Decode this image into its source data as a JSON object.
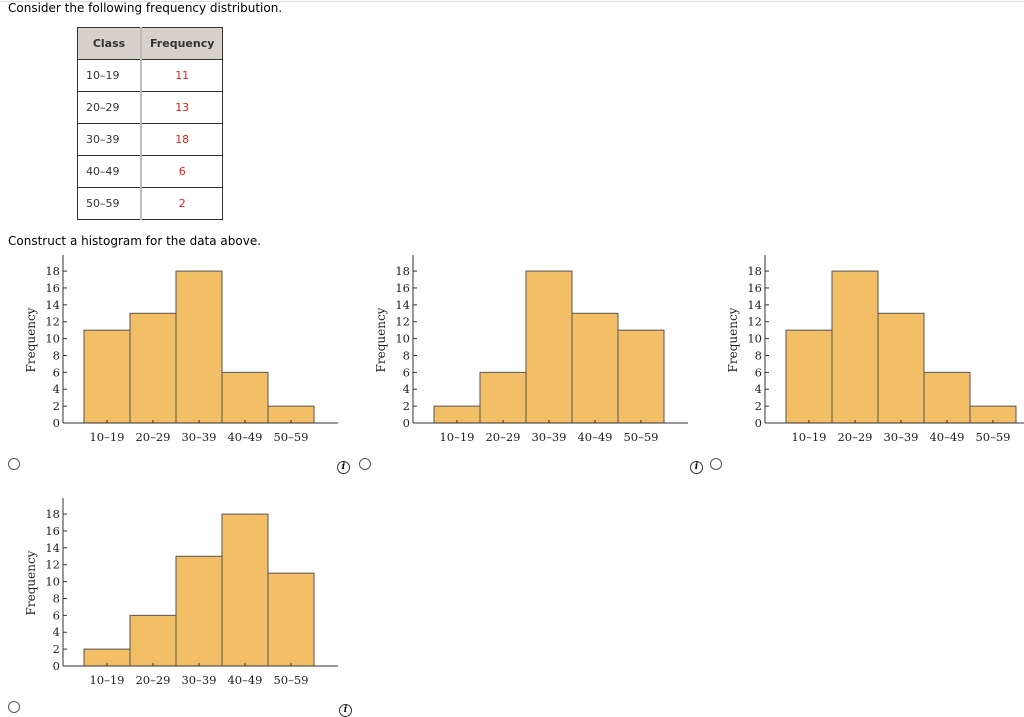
{
  "question": "Consider the following frequency distribution.",
  "instruction": "Construct a histogram for the data above.",
  "table": {
    "headers": [
      "Class",
      "Frequency"
    ],
    "rows": [
      [
        "10–19",
        "11"
      ],
      [
        "20–29",
        "13"
      ],
      [
        "30–39",
        "18"
      ],
      [
        "40–49",
        "6"
      ],
      [
        "50–59",
        "2"
      ]
    ]
  },
  "info_label": "i",
  "chart_data": [
    {
      "type": "bar",
      "option": "A",
      "categories": [
        "10–19",
        "20–29",
        "30–39",
        "40–49",
        "50–59"
      ],
      "values": [
        11,
        13,
        18,
        6,
        2
      ],
      "ylabel": "Frequency",
      "ylim": [
        0,
        19
      ],
      "yticks": [
        0,
        2,
        4,
        6,
        8,
        10,
        12,
        14,
        16,
        18
      ],
      "bar_color": "#f2be66",
      "grid": false
    },
    {
      "type": "bar",
      "option": "B",
      "categories": [
        "10–19",
        "20–29",
        "30–39",
        "40–49",
        "50–59"
      ],
      "values": [
        2,
        6,
        18,
        13,
        11
      ],
      "ylabel": "Frequency",
      "ylim": [
        0,
        19
      ],
      "yticks": [
        0,
        2,
        4,
        6,
        8,
        10,
        12,
        14,
        16,
        18
      ],
      "bar_color": "#f2be66",
      "grid": false
    },
    {
      "type": "bar",
      "option": "C",
      "categories": [
        "10–19",
        "20–29",
        "30–39",
        "40–49",
        "50–59"
      ],
      "values": [
        11,
        18,
        13,
        6,
        2
      ],
      "ylabel": "Frequency",
      "ylim": [
        0,
        19
      ],
      "yticks": [
        0,
        2,
        4,
        6,
        8,
        10,
        12,
        14,
        16,
        18
      ],
      "bar_color": "#f2be66",
      "grid": false
    },
    {
      "type": "bar",
      "option": "D",
      "categories": [
        "10–19",
        "20–29",
        "30–39",
        "40–49",
        "50–59"
      ],
      "values": [
        2,
        6,
        13,
        18,
        11
      ],
      "ylabel": "Frequency",
      "ylim": [
        0,
        19
      ],
      "yticks": [
        0,
        2,
        4,
        6,
        8,
        10,
        12,
        14,
        16,
        18
      ],
      "bar_color": "#f2be66",
      "grid": false
    }
  ]
}
